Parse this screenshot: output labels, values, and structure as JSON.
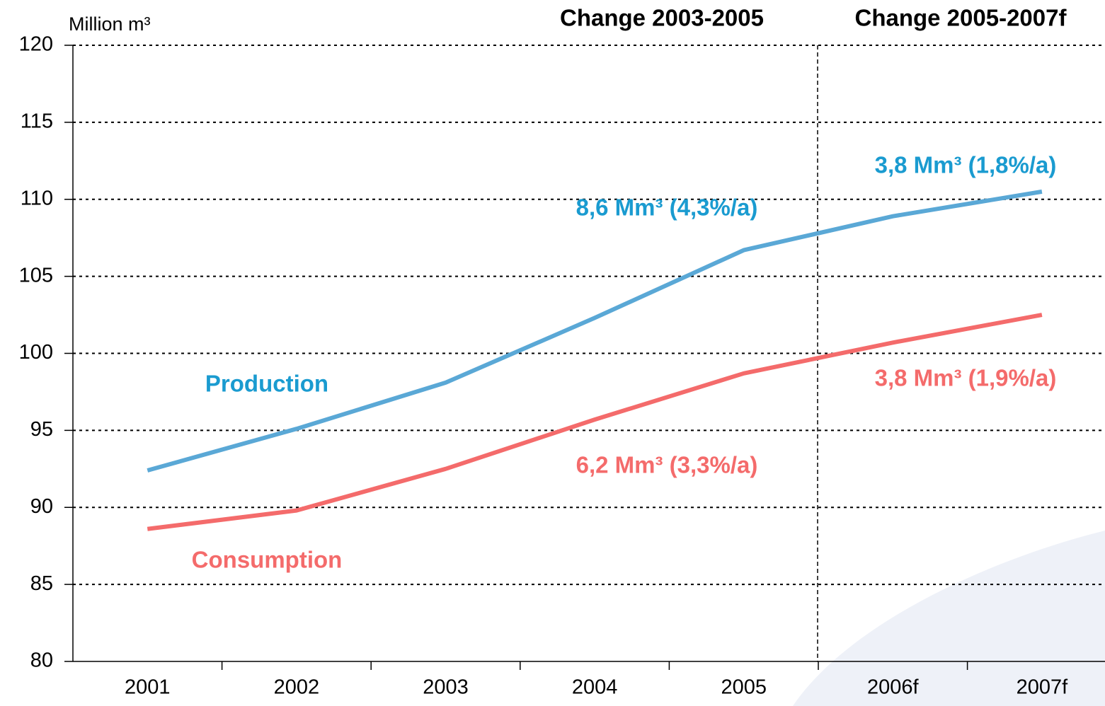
{
  "chart_data": {
    "type": "line",
    "y_label": "Million m³",
    "headers": [
      "Change 2003-2005",
      "Change 2005-2007f"
    ],
    "categories": [
      "2001",
      "2002",
      "2003",
      "2004",
      "2005",
      "2006f",
      "2007f"
    ],
    "series": [
      {
        "name": "Production",
        "color": "#5aa8d6",
        "label_color": "#1a9bd0",
        "values": [
          92.4,
          95.1,
          98.1,
          102.3,
          106.7,
          108.9,
          110.5
        ]
      },
      {
        "name": "Consumption",
        "color": "#f46b6b",
        "label_color": "#f46b6b",
        "values": [
          88.6,
          89.8,
          92.5,
          95.7,
          98.7,
          100.7,
          102.5
        ]
      }
    ],
    "annotations": [
      "8,6 Mm³ (4,3%/a)",
      "3,8 Mm³ (1,8%/a)",
      "6,2 Mm³ (3,3%/a)",
      "3,8 Mm³ (1,9%/a)"
    ],
    "ylim": [
      80,
      120
    ],
    "yticks": [
      80,
      85,
      90,
      95,
      100,
      105,
      110,
      115,
      120
    ],
    "grid": true
  }
}
